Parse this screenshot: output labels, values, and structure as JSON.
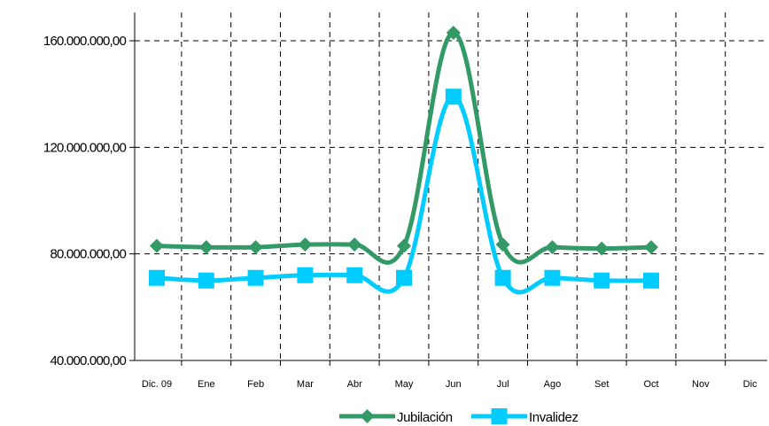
{
  "chart_data": {
    "type": "line",
    "categories": [
      "Dic. 09",
      "Ene",
      "Feb",
      "Mar",
      "Abr",
      "May",
      "Jun",
      "Jul",
      "Ago",
      "Set",
      "Oct",
      "Nov",
      "Dic"
    ],
    "yticks": [
      "40.000.000,00",
      "80.000.000,00",
      "120.000.000,00",
      "160.000.000,00"
    ],
    "ylim": [
      40000000,
      170000000
    ],
    "grid": true,
    "legend_position": "bottom",
    "series": [
      {
        "name": "Jubilación",
        "color": "#339966",
        "marker": "diamond",
        "values": [
          83000000,
          82500000,
          82500000,
          83500000,
          83500000,
          83000000,
          163000000,
          83500000,
          82500000,
          82000000,
          82500000,
          null,
          null
        ]
      },
      {
        "name": "Invalidez",
        "color": "#00CCFF",
        "marker": "square",
        "values": [
          71000000,
          70000000,
          71000000,
          72000000,
          72000000,
          71000000,
          139000000,
          71000000,
          71000000,
          70000000,
          70000000,
          null,
          null
        ]
      }
    ]
  }
}
